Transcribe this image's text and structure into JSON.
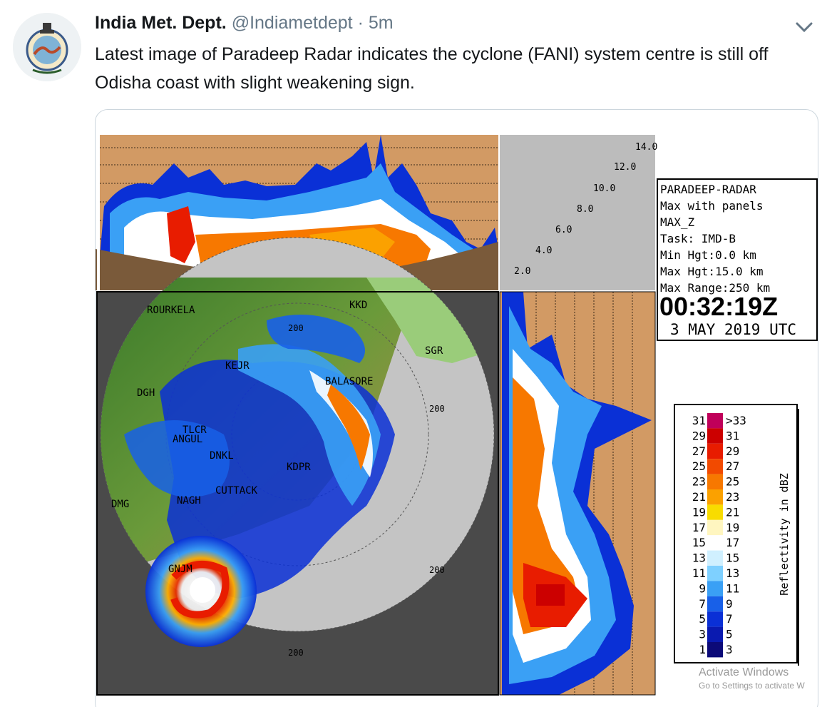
{
  "tweet": {
    "author_name": "India Met. Dept.",
    "author_handle": "@Indiametdept",
    "separator": "·",
    "time": "5m",
    "text": "Latest image of Paradeep Radar indicates the cyclone (FANI) system centre is still off Odisha coast with slight weakening sign."
  },
  "icons": {
    "avatar": "imd-emblem-icon",
    "caret": "chevron-down-icon"
  },
  "radar": {
    "info": {
      "line1": "PARADEEP-RADAR",
      "line2": "Max with panels",
      "line3": "MAX_Z",
      "line4": "Task: IMD-B",
      "line5": "Min Hgt:0.0 km",
      "line6": "Max Hgt:15.0 km",
      "line7": "Max Range:250 km",
      "time": "00:32:19Z",
      "date": "3 MAY 2019 UTC"
    },
    "height_ticks": [
      "14.0",
      "12.0",
      "10.0",
      "8.0",
      "6.0",
      "4.0",
      "2.0"
    ],
    "cities": {
      "rourkela": "ROURKELA",
      "kkd": "KKD",
      "sgr": "SGR",
      "kejr": "KEJR",
      "balasore": "BALASORE",
      "dgh": "DGH",
      "tlcr": "TLCR",
      "angul": "ANGUL",
      "dnkl": "DNKL",
      "kdpr": "KDPR",
      "cuttack": "CUTTACK",
      "dmg": "DMG",
      "nagh": "NAGH",
      "gnjm": "GNJM"
    },
    "ring_labels": {
      "r1": "200",
      "r2": "200",
      "r3": "200",
      "r4": "200"
    },
    "legend": {
      "title": "Reflectivity in dBZ",
      "rows": [
        {
          "low": "31",
          "high": ">33",
          "color": "#c0005a"
        },
        {
          "low": "29",
          "high": "31",
          "color": "#cc0000"
        },
        {
          "low": "27",
          "high": "29",
          "color": "#e81c00"
        },
        {
          "low": "25",
          "high": "27",
          "color": "#f24a00"
        },
        {
          "low": "23",
          "high": "25",
          "color": "#f77800"
        },
        {
          "low": "21",
          "high": "23",
          "color": "#fba100"
        },
        {
          "low": "19",
          "high": "21",
          "color": "#f8dc00"
        },
        {
          "low": "17",
          "high": "19",
          "color": "#fff6c0"
        },
        {
          "low": "15",
          "high": "17",
          "color": "#ffffff"
        },
        {
          "low": "13",
          "high": "15",
          "color": "#d0f0ff"
        },
        {
          "low": "11",
          "high": "13",
          "color": "#7ed0ff"
        },
        {
          "low": "9",
          "high": "11",
          "color": "#3aa0f5"
        },
        {
          "low": "7",
          "high": "9",
          "color": "#1860e8"
        },
        {
          "low": "5",
          "high": "7",
          "color": "#0a30d6"
        },
        {
          "low": "3",
          "high": "5",
          "color": "#0a1ab0"
        },
        {
          "low": "1",
          "high": "3",
          "color": "#0c0a78"
        }
      ]
    }
  },
  "watermark": {
    "line1": "Activate Windows",
    "line2": "Go to Settings to activate W"
  }
}
